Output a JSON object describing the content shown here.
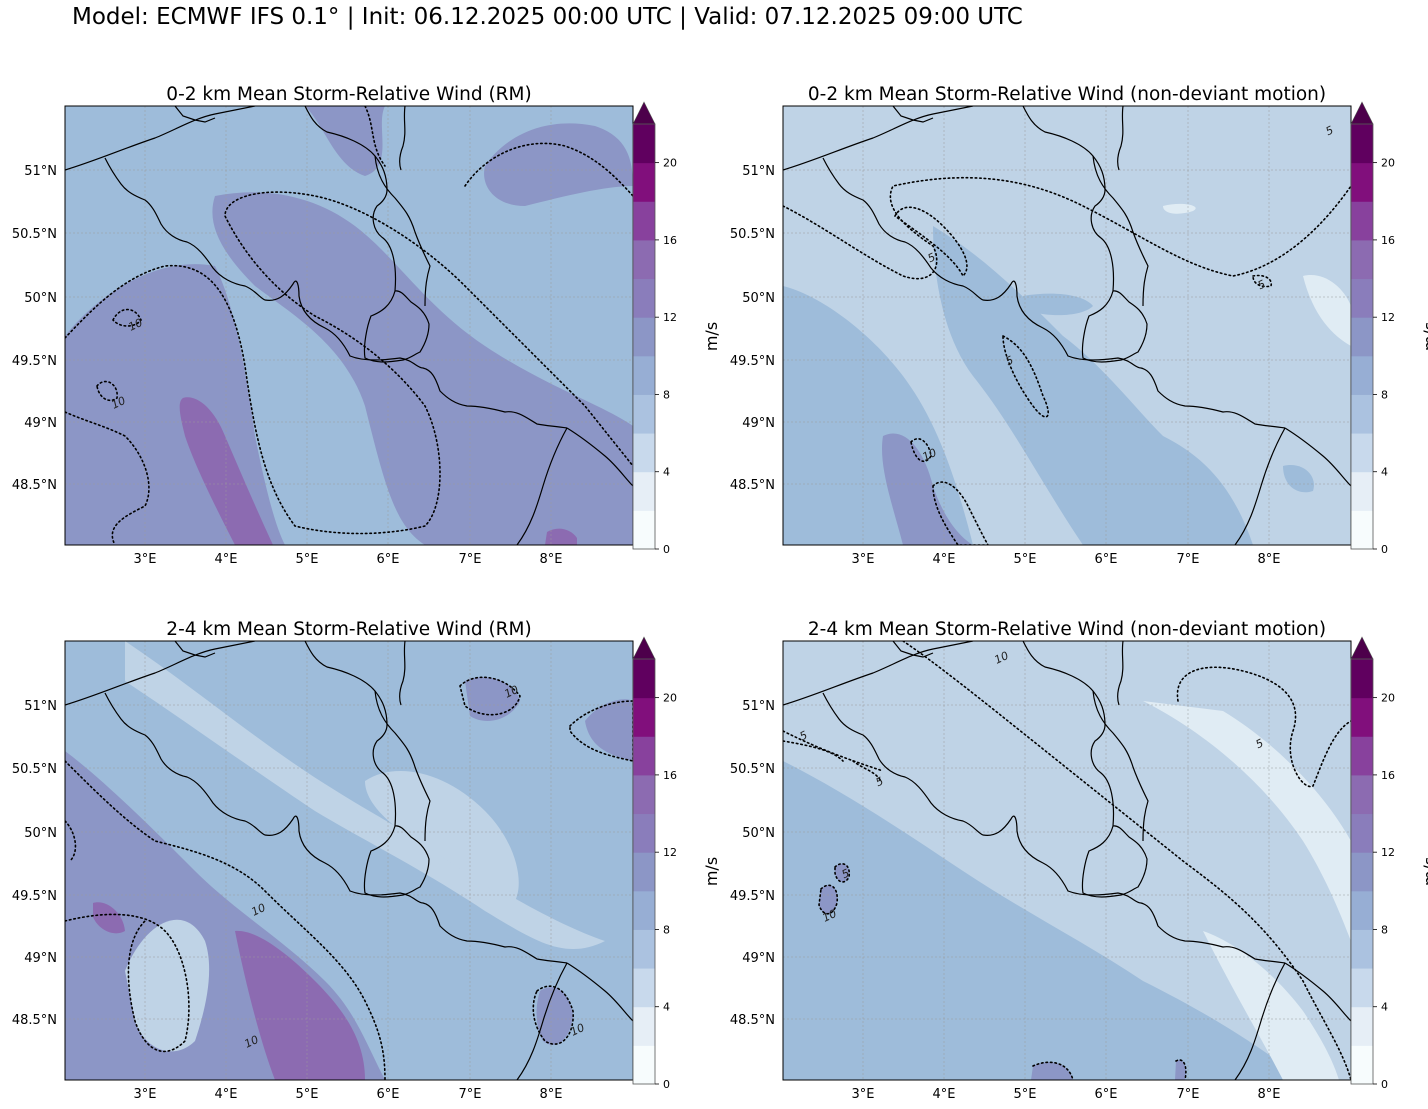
{
  "suptitle": "Model: ECMWF IFS 0.1° | Init: 06.12.2025 00:00 UTC | Valid: 07.12.2025 09:00 UTC",
  "colors": {
    "levels": [
      "#f7fcfd",
      "#e0ecf4",
      "#bfd3e6",
      "#9ebcda",
      "#8c96c6",
      "#8c6bb1",
      "#88419d",
      "#810f7c",
      "#4d004b"
    ],
    "country_border": "#000000",
    "contour": "#000000",
    "grid": "#9a9a9a"
  },
  "panels": [
    {
      "title": "0-2 km Mean Storm-Relative Wind (RM)",
      "contour_labels": [
        "10",
        "10"
      ]
    },
    {
      "title": "0-2 km Mean Storm-Relative Wind (non-deviant motion)",
      "contour_labels": [
        "5",
        "5",
        "5",
        "5",
        "10"
      ]
    },
    {
      "title": "2-4 km Mean Storm-Relative Wind (RM)",
      "contour_labels": [
        "10",
        "10",
        "10",
        "10"
      ]
    },
    {
      "title": "2-4 km Mean Storm-Relative Wind (non-deviant motion)",
      "contour_labels": [
        "5",
        "5",
        "5",
        "5",
        "10",
        "10"
      ]
    }
  ],
  "lon_ticks": [
    "3°E",
    "4°E",
    "5°E",
    "6°E",
    "7°E",
    "8°E"
  ],
  "lat_ticks": [
    "51°N",
    "50.5°N",
    "50°N",
    "49.5°N",
    "49°N",
    "48.5°N"
  ],
  "colorbar": {
    "ticks": [
      "0",
      "4",
      "8",
      "12",
      "16",
      "20"
    ],
    "label": "m/s",
    "max_value": 22,
    "extend": "max"
  }
}
